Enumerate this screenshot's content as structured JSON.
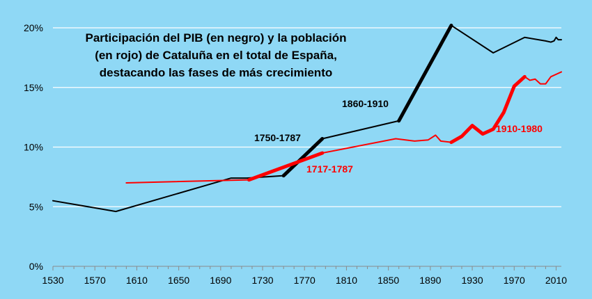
{
  "chart_data": {
    "type": "line",
    "title_lines": [
      "Participación del PIB (en negro) y la población",
      "(en rojo) de Cataluña en el total de España,",
      "destacando las fases de más crecimiento"
    ],
    "xlim": [
      1530,
      2015
    ],
    "ylim": [
      0,
      20
    ],
    "x_ticks": [
      1530,
      1570,
      1610,
      1650,
      1690,
      1730,
      1770,
      1810,
      1850,
      1890,
      1930,
      1970,
      2010
    ],
    "y_ticks": [
      {
        "value": 0,
        "label": "0%"
      },
      {
        "value": 5,
        "label": "5%"
      },
      {
        "value": 10,
        "label": "10%"
      },
      {
        "value": 15,
        "label": "15%"
      },
      {
        "value": 20,
        "label": "20%"
      }
    ],
    "grid": "horizontal",
    "series": [
      {
        "color": "#000000",
        "x": [
          1530,
          1590,
          1700,
          1715,
          1750,
          1787,
          1860,
          1910,
          1950,
          1980,
          2000,
          2005,
          2008,
          2010,
          2012,
          2015
        ],
        "y": [
          5.5,
          4.6,
          7.4,
          7.4,
          7.6,
          10.7,
          12.2,
          20.2,
          17.9,
          19.2,
          18.9,
          18.8,
          18.9,
          19.2,
          19.0,
          19.0
        ]
      },
      {
        "color": "#ff0000",
        "x": [
          1600,
          1717,
          1787,
          1857,
          1875,
          1888,
          1895,
          1900,
          1910,
          1920,
          1930,
          1940,
          1950,
          1960,
          1970,
          1980,
          1985,
          1990,
          1995,
          2000,
          2005,
          2010,
          2015
        ],
        "y": [
          7.0,
          7.25,
          9.5,
          10.7,
          10.5,
          10.6,
          11.0,
          10.5,
          10.4,
          10.9,
          11.8,
          11.1,
          11.5,
          12.9,
          15.1,
          15.9,
          15.6,
          15.7,
          15.3,
          15.3,
          15.9,
          16.1,
          16.3
        ]
      }
    ],
    "highlights": [
      {
        "color": "#000000",
        "label": "1750-1787",
        "x": [
          1750,
          1787
        ],
        "y": [
          7.6,
          10.7
        ]
      },
      {
        "color": "#000000",
        "label": "1860-1910",
        "x": [
          1860,
          1910
        ],
        "y": [
          12.2,
          20.2
        ]
      },
      {
        "color": "#ff0000",
        "label": "1717-1787",
        "x": [
          1717,
          1787
        ],
        "y": [
          7.25,
          9.5
        ]
      },
      {
        "color": "#ff0000",
        "label": "1910-1980",
        "x": [
          1910,
          1920,
          1930,
          1940,
          1950,
          1960,
          1970,
          1980
        ],
        "y": [
          10.4,
          10.9,
          11.8,
          11.1,
          11.5,
          12.9,
          15.1,
          15.9
        ]
      }
    ]
  }
}
